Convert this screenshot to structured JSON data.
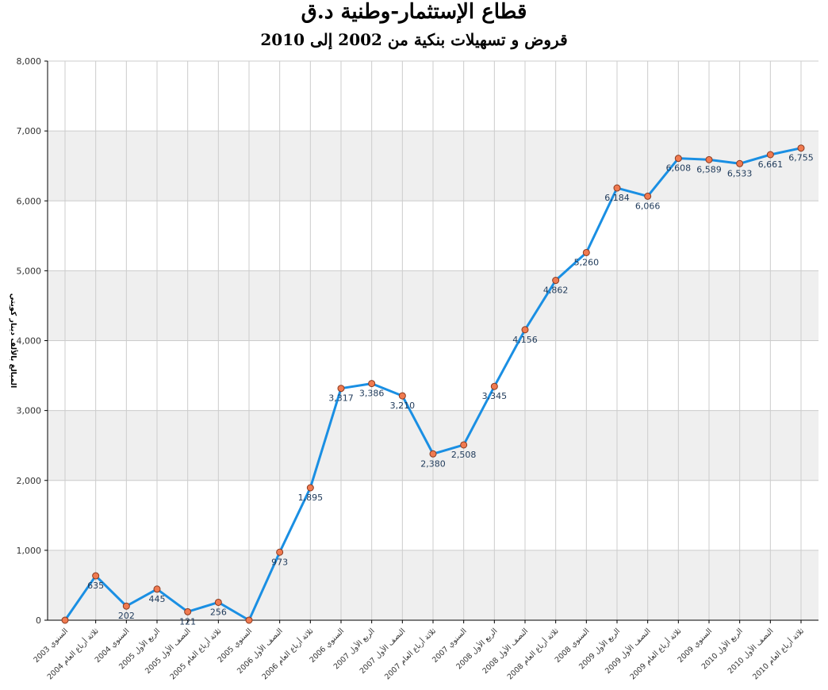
{
  "chart_data": {
    "type": "line",
    "title": "قطاع الإستثمار-وطنية د.ق",
    "subtitle": "قروض و تسهيلات بنكية من 2002 إلى 2010",
    "ylabel": "المبالغ بالألف دينار كويتي",
    "xlabel": "",
    "ylim": [
      0,
      8000
    ],
    "yticks": [
      "0",
      "1,000",
      "2,000",
      "3,000",
      "4,000",
      "5,000",
      "6,000",
      "7,000",
      "8,000"
    ],
    "grid": true,
    "categories": [
      "السنوي 2003",
      "ثلاثة أرباع العام 2004",
      "السنوي 2004",
      "الربع الأول 2005",
      "النصف الأول 2005",
      "ثلاثة أرباع العام 2005",
      "السنوي 2005",
      "النصف الأول 2006",
      "ثلاثة أرباع العام 2006",
      "السنوي 2006",
      "الربع الأول 2007",
      "النصف الأول 2007",
      "ثلاثة أرباع العام 2007",
      "السنوي 2007",
      "الربع الأول 2008",
      "النصف الأول 2008",
      "ثلاثة أرباع العام 2008",
      "السنوي 2008",
      "الربع الأول 2009",
      "النصف الأول 2009",
      "ثلاثة أرباع العام 2009",
      "السنوي 2009",
      "الربع الأول 2010",
      "النصف الأول 2010",
      "ثلاثة أرباع العام 2010"
    ],
    "values": [
      0,
      635,
      202,
      445,
      121,
      256,
      0,
      973,
      1895,
      3317,
      3386,
      3210,
      2380,
      2508,
      3345,
      4156,
      4862,
      5260,
      6184,
      6066,
      6608,
      6589,
      6533,
      6661,
      6755
    ],
    "data_labels": [
      "",
      "635",
      "202",
      "445",
      "121",
      "256",
      "",
      "973",
      "1,895",
      "3,317",
      "3,386",
      "3,210",
      "2,380",
      "2,508",
      "3,345",
      "4,156",
      "4,862",
      "5,260",
      "6,184",
      "6,066",
      "6,608",
      "6,589",
      "6,533",
      "6,661",
      "6,755"
    ],
    "colors": {
      "line": "#1a8fe3",
      "marker_fill": "#f07a50",
      "marker_stroke": "#8a3a20",
      "band": "#efefef",
      "grid": "#cccccc"
    }
  }
}
